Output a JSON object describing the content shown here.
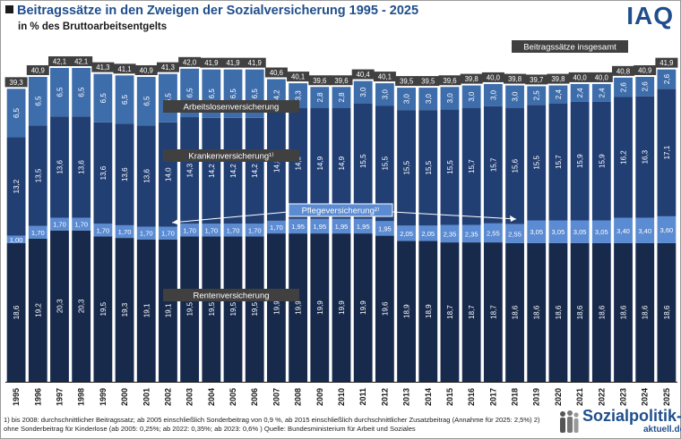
{
  "header": {
    "title": "Beitragssätze in den Zweigen der Sozialversicherung 1995 - 2025",
    "subtitle": "in % des Bruttoarbeitsentgelts",
    "logo": "IAQ"
  },
  "footnote": "1) bis 2008: durchschnittlicher Beitragssatz; ab 2005 einschließlich Sonderbeitrag von 0,9 %, ab 2015 einschließlich durchschnittlicher Zusatzbeitrag (Annahme für 2025: 2,5%) 2) ohne Sonderbeitrag für Kinderlose (ab 2005: 0,25%; ab 2022: 0,35%; ab 2023: 0,6% )  Quelle: Bundesministerium  für Arbeit und Soziales",
  "brand": {
    "main": "Sozialpolitik-",
    "sub": "aktuell.de"
  },
  "colors": {
    "rente": "#182a4c",
    "pflege": "#5b8bd2",
    "kranken": "#223f74",
    "arbeitslosen": "#3e6dab",
    "total_box": "#404040",
    "label_box": "#404040"
  },
  "chart_data": {
    "type": "bar",
    "stacked": true,
    "categories": [
      "1995",
      "1996",
      "1997",
      "1998",
      "1999",
      "2000",
      "2001",
      "2002",
      "2003",
      "2004",
      "2005",
      "2006",
      "2007",
      "2008",
      "2009",
      "2010",
      "2011",
      "2012",
      "2013",
      "2014",
      "2015",
      "2016",
      "2017",
      "2018",
      "2019",
      "2020",
      "2021",
      "2022",
      "2023",
      "2024",
      "2025"
    ],
    "series": [
      {
        "name": "Rentenversicherung",
        "labels": [
          "18,6",
          "19,2",
          "20,3",
          "20,3",
          "19,5",
          "19,3",
          "19,1",
          "19,1",
          "19,5",
          "19,5",
          "19,5",
          "19,5",
          "19,9",
          "19,9",
          "19,9",
          "19,9",
          "19,9",
          "19,6",
          "18,9",
          "18,9",
          "18,7",
          "18,7",
          "18,7",
          "18,6",
          "18,6",
          "18,6",
          "18,6",
          "18,6",
          "18,6",
          "18,6",
          "18,6"
        ]
      },
      {
        "name": "Pflegeversicherung²⁾",
        "labels": [
          "1,00",
          "1,70",
          "1,70",
          "1,70",
          "1,70",
          "1,70",
          "1,70",
          "1,70",
          "1,70",
          "1,70",
          "1,70",
          "1,70",
          "1,70",
          "1,95",
          "1,95",
          "1,95",
          "1,95",
          "1,95",
          "2,05",
          "2,05",
          "2,35",
          "2,35",
          "2,55",
          "2,55",
          "3,05",
          "3,05",
          "3,05",
          "3,05",
          "3,40",
          "3,40",
          "3,60"
        ]
      },
      {
        "name": "Krankenversicherung¹⁾",
        "labels": [
          "13,2",
          "13,5",
          "13,6",
          "13,6",
          "13,6",
          "13,6",
          "13,6",
          "14,0",
          "14,3",
          "14,2",
          "14,2",
          "14,2",
          "14,8",
          "14,9",
          "14,9",
          "14,9",
          "15,5",
          "15,5",
          "15,5",
          "15,5",
          "15,5",
          "15,7",
          "15,7",
          "15,6",
          "15,5",
          "15,7",
          "15,9",
          "15,9",
          "16,2",
          "16,3",
          "17,1"
        ]
      },
      {
        "name": "Arbeitslosenversicherung",
        "labels": [
          "6,5",
          "6,5",
          "6,5",
          "6,5",
          "6,5",
          "6,5",
          "6,5",
          "6,5",
          "6,5",
          "6,5",
          "6,5",
          "6,5",
          "4,2",
          "3,3",
          "2,8",
          "2,8",
          "3,0",
          "3,0",
          "3,0",
          "3,0",
          "3,0",
          "3,0",
          "3,0",
          "3,0",
          "2,5",
          "2,4",
          "2,4",
          "2,4",
          "2,6",
          "2,6",
          "2,6"
        ]
      }
    ],
    "totals_label": "Beitragssätze insgesamt",
    "totals": [
      "39,3",
      "40,9",
      "42,1",
      "42,1",
      "41,3",
      "41,1",
      "40,9",
      "41,3",
      "42,0",
      "41,9",
      "41,9",
      "41,9",
      "40,6",
      "40,1",
      "39,6",
      "39,6",
      "40,4",
      "40,1",
      "39,5",
      "39,5",
      "39,6",
      "39,8",
      "40,0",
      "39,8",
      "39,7",
      "39,8",
      "40,0",
      "40,0",
      "40,8",
      "40,9",
      "41,9"
    ],
    "ylim": [
      0,
      42.1
    ],
    "grid": false,
    "legend": "inside-bars"
  }
}
